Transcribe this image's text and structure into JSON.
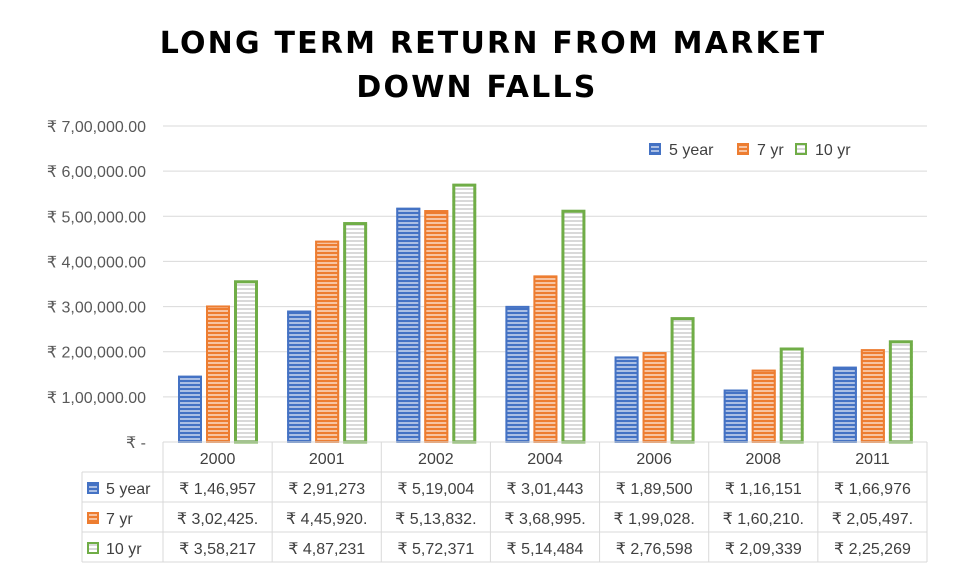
{
  "chart_data": {
    "type": "bar",
    "title_lines": [
      "LONG TERM RETURN FROM MARKET",
      "DOWN FALLS"
    ],
    "categories": [
      "2000",
      "2001",
      "2002",
      "2004",
      "2006",
      "2008",
      "2011"
    ],
    "ylim": [
      0,
      700000
    ],
    "ytick_values": [
      0,
      100000,
      200000,
      300000,
      400000,
      500000,
      600000,
      700000
    ],
    "ytick_labels": [
      "₹ -",
      "₹ 1,00,000.00",
      "₹ 2,00,000.00",
      "₹ 3,00,000.00",
      "₹ 4,00,000.00",
      "₹ 5,00,000.00",
      "₹ 6,00,000.00",
      "₹ 7,00,000.00"
    ],
    "grid": true,
    "legend_position": "top-right",
    "series": [
      {
        "name": "5 year",
        "color": "#4472c4",
        "values": [
          146957,
          291273,
          519004,
          301443,
          189500,
          116151,
          166976
        ],
        "table_labels": [
          "₹ 1,46,957",
          "₹ 2,91,273",
          "₹ 5,19,004",
          "₹ 3,01,443",
          "₹ 1,89,500",
          "₹ 1,16,151",
          "₹ 1,66,976"
        ]
      },
      {
        "name": "7 yr",
        "color": "#ed7d31",
        "values": [
          302425,
          445920,
          513832,
          368995,
          199028,
          160210,
          205497
        ],
        "table_labels": [
          "₹ 3,02,425.",
          "₹ 4,45,920.",
          "₹ 5,13,832.",
          "₹ 3,68,995.",
          "₹ 1,99,028.",
          "₹ 1,60,210.",
          "₹ 2,05,497."
        ]
      },
      {
        "name": "10 yr",
        "color": "#70ad47",
        "values": [
          358217,
          487231,
          572371,
          514484,
          276598,
          209339,
          225269
        ],
        "table_labels": [
          "₹ 3,58,217",
          "₹ 4,87,231",
          "₹ 5,72,371",
          "₹ 5,14,484",
          "₹ 2,76,598",
          "₹ 2,09,339",
          "₹ 2,25,269"
        ]
      }
    ]
  }
}
